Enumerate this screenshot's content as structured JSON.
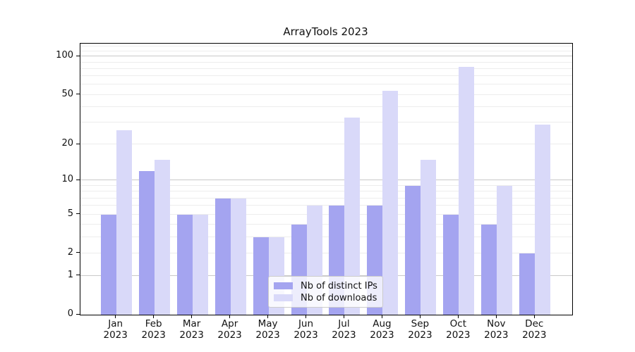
{
  "chart_data": {
    "type": "bar",
    "title": "ArrayTools 2023",
    "categories": [
      "Jan 2023",
      "Feb 2023",
      "Mar 2023",
      "Apr 2023",
      "May 2023",
      "Jun 2023",
      "Jul 2023",
      "Aug 2023",
      "Sep 2023",
      "Oct 2023",
      "Nov 2023",
      "Dec 2023"
    ],
    "x_tick_months": [
      "Jan",
      "Feb",
      "Mar",
      "Apr",
      "May",
      "Jun",
      "Jul",
      "Aug",
      "Sep",
      "Oct",
      "Nov",
      "Dec"
    ],
    "x_tick_year": "2023",
    "series": [
      {
        "name": "Nb of distinct IPs",
        "color": "#a4a4f0",
        "values": [
          5,
          12,
          5,
          7,
          3,
          4,
          6,
          6,
          9,
          5,
          4,
          2
        ]
      },
      {
        "name": "Nb of downloads",
        "color": "#d9d9f9",
        "values": [
          26,
          15,
          5,
          7,
          3,
          6,
          33,
          54,
          15,
          83,
          9,
          29
        ]
      }
    ],
    "yscale": "log1p",
    "ylim": [
      0,
      126
    ],
    "yticks": [
      100,
      50,
      20,
      10,
      5,
      2,
      1,
      0
    ],
    "grid": {
      "major": [
        1,
        10,
        100
      ],
      "minor": [
        2,
        3,
        4,
        5,
        6,
        7,
        8,
        9,
        20,
        30,
        40,
        50,
        60,
        70,
        80,
        90,
        110,
        120
      ]
    },
    "legend_position": "lower center",
    "xlabel": "",
    "ylabel": ""
  },
  "legend": {
    "items": [
      {
        "label": "Nb of distinct IPs",
        "color": "#a4a4f0"
      },
      {
        "label": "Nb of downloads",
        "color": "#d9d9f9"
      }
    ]
  },
  "colors": {
    "background": "#ffffff",
    "axis": "#000000",
    "grid_major": "#c9c9c9",
    "grid_minor": "#ededed",
    "text": "#111111",
    "legend_border": "#cccccc"
  }
}
